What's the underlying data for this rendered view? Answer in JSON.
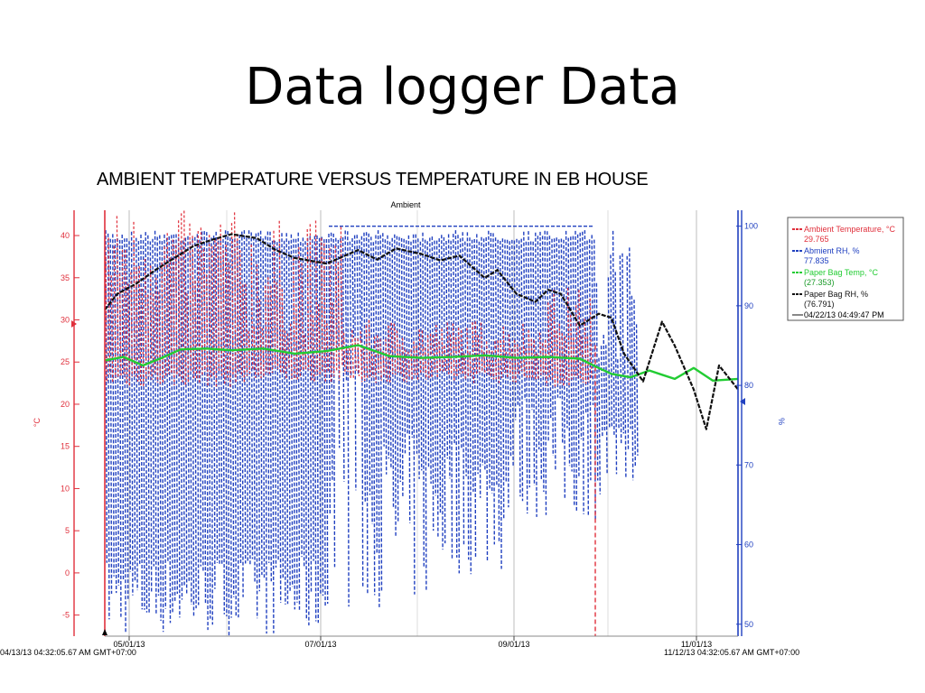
{
  "slide": {
    "title": "Data logger Data",
    "subtitle": "AMBIENT TEMPERATURE VERSUS TEMPERATURE IN EB HOUSE"
  },
  "chart_data": {
    "type": "line",
    "title": "Ambient",
    "left_axis": {
      "label": "°C",
      "ylim": [
        -7.5,
        43
      ],
      "ticks": [
        -5,
        0,
        5,
        10,
        15,
        20,
        25,
        30,
        35,
        40
      ],
      "color": "#e0303c"
    },
    "right_axis": {
      "label": "%",
      "ylim": [
        48.5,
        102
      ],
      "ticks": [
        50,
        60,
        70,
        80,
        90,
        100
      ],
      "color": "#2040c0"
    },
    "x_axis": {
      "ticks": [
        "05/01/13",
        "07/01/13",
        "09/01/13",
        "11/01/13"
      ],
      "start_label": "04/13/13 04:32:05.67 AM GMT+07:00",
      "end_label": "11/12/13 04:32:05.67 AM GMT+07:00"
    },
    "grid": true,
    "legend_position": "right",
    "legend": {
      "cursor_label": "04/22/13 04:49:47 PM",
      "entries": [
        {
          "name": "Ambient Temperature, °C",
          "value": "29.765",
          "color": "#e0303c",
          "axis": "left"
        },
        {
          "name": "Abmient RH, %",
          "value": "77.835",
          "color": "#2040c0",
          "axis": "right"
        },
        {
          "name": "Paper Bag Temp, °C",
          "value": "(27.353)",
          "color": "#22cc33",
          "axis": "left"
        },
        {
          "name": "Paper Bag RH, %",
          "value": "(76.791)",
          "color": "#111111",
          "axis": "right"
        }
      ]
    },
    "series": [
      {
        "name": "Paper Bag Temp, °C",
        "axis": "left",
        "color": "#22cc33",
        "x": [
          0.0,
          0.03,
          0.06,
          0.09,
          0.12,
          0.16,
          0.2,
          0.25,
          0.3,
          0.35,
          0.4,
          0.45,
          0.5,
          0.55,
          0.6,
          0.65,
          0.7,
          0.75,
          0.78,
          0.8,
          0.83,
          0.86,
          0.88,
          0.9,
          0.93,
          0.96,
          1.0
        ],
        "y": [
          25.2,
          25.6,
          24.6,
          25.5,
          26.5,
          26.6,
          26.4,
          26.6,
          26.0,
          26.3,
          27.0,
          25.7,
          25.5,
          25.6,
          25.8,
          25.5,
          25.6,
          25.4,
          24.3,
          23.6,
          23.2,
          24.0,
          23.5,
          23.0,
          24.3,
          22.8,
          23.0
        ]
      },
      {
        "name": "Paper Bag RH, %",
        "axis": "right",
        "color": "#111111",
        "x": [
          0.0,
          0.02,
          0.05,
          0.08,
          0.11,
          0.14,
          0.17,
          0.2,
          0.24,
          0.27,
          0.3,
          0.35,
          0.4,
          0.43,
          0.46,
          0.5,
          0.53,
          0.56,
          0.6,
          0.62,
          0.65,
          0.68,
          0.7,
          0.72,
          0.75,
          0.78,
          0.8,
          0.82,
          0.85,
          0.88,
          0.9,
          0.93,
          0.95,
          0.97,
          1.0
        ],
        "y": [
          89.5,
          91.5,
          92.8,
          94.5,
          96.0,
          97.5,
          98.3,
          99.0,
          98.5,
          97.0,
          96.0,
          95.3,
          97.0,
          95.8,
          97.2,
          96.5,
          95.7,
          96.3,
          93.5,
          94.5,
          91.5,
          90.5,
          92.0,
          91.5,
          87.5,
          89.0,
          88.5,
          84.0,
          80.5,
          88.0,
          85.0,
          79.5,
          74.5,
          82.5,
          79.5
        ]
      },
      {
        "name": "Ambient Temperature, °C",
        "axis": "left",
        "color": "#e0303c",
        "style": "dashed, rapid daily oscillation",
        "approx_range": [
          21.5,
          43
        ]
      },
      {
        "name": "Abmient RH, %",
        "axis": "right",
        "color": "#2040c0",
        "style": "dashed, rapid daily oscillation",
        "approx_range": [
          48.5,
          100
        ]
      }
    ]
  }
}
